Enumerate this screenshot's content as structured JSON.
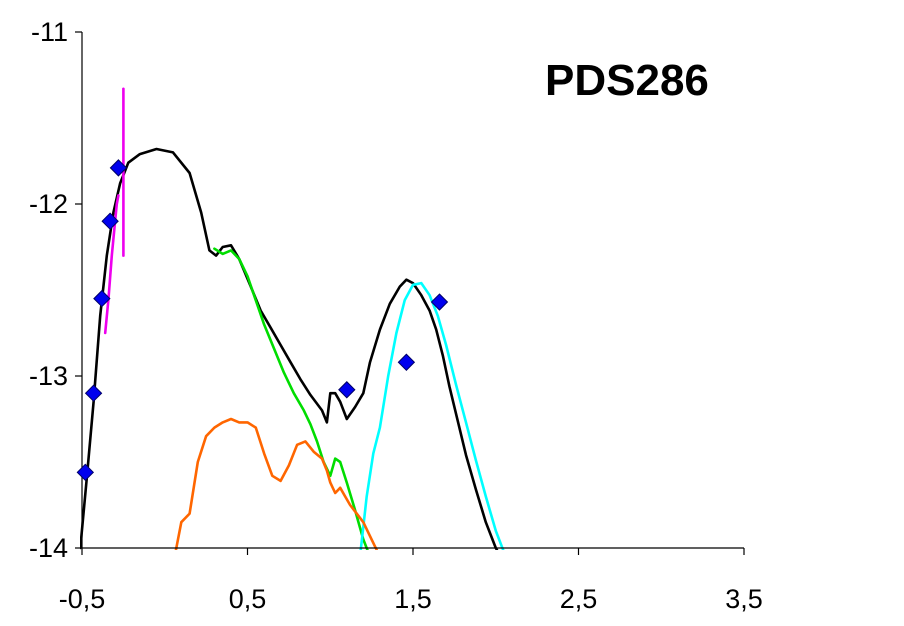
{
  "chart_data": {
    "type": "line",
    "title": "PDS286",
    "xlabel": "",
    "ylabel": "",
    "xlim": [
      -0.5,
      3.5
    ],
    "ylim": [
      -14,
      -11
    ],
    "x_ticks": [
      -0.5,
      0.5,
      1.5,
      2.5,
      3.5
    ],
    "x_tick_labels": [
      "-0,5",
      "0,5",
      "1,5",
      "2,5",
      "3,5"
    ],
    "y_ticks": [
      -11,
      -12,
      -13,
      -14
    ],
    "y_tick_labels": [
      "-11",
      "-12",
      "-13",
      "-14"
    ],
    "grid": false,
    "legend": "none",
    "series": [
      {
        "style": "points",
        "marker": "diamond",
        "color": "#0000ee",
        "x": [
          -0.48,
          -0.43,
          -0.38,
          -0.33,
          -0.28,
          1.1,
          1.46,
          1.66
        ],
        "y": [
          -13.56,
          -13.1,
          -12.55,
          -12.1,
          -11.79,
          -13.08,
          -12.92,
          -12.57
        ]
      },
      {
        "style": "line",
        "color": "#000000",
        "x": [
          -0.51,
          -0.47,
          -0.43,
          -0.39,
          -0.35,
          -0.31,
          -0.27,
          -0.22,
          -0.15,
          -0.05,
          0.05,
          0.15,
          0.22,
          0.27,
          0.31,
          0.35,
          0.4,
          0.45,
          0.52,
          0.58,
          0.64,
          0.7,
          0.76,
          0.82,
          0.88,
          0.95,
          0.98,
          1.0,
          1.03,
          1.06,
          1.1,
          1.15,
          1.2,
          1.24,
          1.3,
          1.36,
          1.42,
          1.46,
          1.5,
          1.55,
          1.6,
          1.64,
          1.68,
          1.72,
          1.77,
          1.82,
          1.88,
          1.94,
          2.0,
          2.06,
          2.13
        ],
        "y": [
          -14.0,
          -13.58,
          -13.15,
          -12.65,
          -12.3,
          -12.05,
          -11.88,
          -11.76,
          -11.71,
          -11.68,
          -11.7,
          -11.82,
          -12.05,
          -12.27,
          -12.3,
          -12.25,
          -12.24,
          -12.32,
          -12.48,
          -12.62,
          -12.72,
          -12.82,
          -12.92,
          -13.02,
          -13.11,
          -13.2,
          -13.27,
          -13.1,
          -13.1,
          -13.15,
          -13.25,
          -13.18,
          -13.1,
          -12.92,
          -12.73,
          -12.58,
          -12.48,
          -12.44,
          -12.46,
          -12.53,
          -12.62,
          -12.73,
          -12.88,
          -13.06,
          -13.26,
          -13.46,
          -13.66,
          -13.85,
          -14.0,
          -14.1,
          -14.2
        ]
      },
      {
        "style": "line",
        "color": "#00dd00",
        "x": [
          0.3,
          0.35,
          0.4,
          0.45,
          0.5,
          0.55,
          0.6,
          0.66,
          0.72,
          0.78,
          0.84,
          0.88,
          0.92,
          0.96,
          1.0,
          1.03,
          1.06,
          1.1,
          1.15,
          1.2,
          1.24,
          1.28,
          1.32
        ],
        "y": [
          -12.26,
          -12.29,
          -12.27,
          -12.32,
          -12.42,
          -12.56,
          -12.7,
          -12.84,
          -12.98,
          -13.1,
          -13.2,
          -13.28,
          -13.38,
          -13.5,
          -13.58,
          -13.48,
          -13.5,
          -13.62,
          -13.78,
          -13.95,
          -14.05,
          -14.15,
          -14.25
        ]
      },
      {
        "style": "line",
        "color": "#00ffff",
        "x": [
          1.18,
          1.22,
          1.26,
          1.3,
          1.35,
          1.4,
          1.45,
          1.5,
          1.55,
          1.6,
          1.65,
          1.7,
          1.76,
          1.82,
          1.88,
          1.94,
          2.0,
          2.06,
          2.13
        ],
        "y": [
          -14.05,
          -13.7,
          -13.45,
          -13.3,
          -13.0,
          -12.75,
          -12.56,
          -12.47,
          -12.46,
          -12.53,
          -12.65,
          -12.82,
          -13.05,
          -13.27,
          -13.49,
          -13.7,
          -13.9,
          -14.05,
          -14.2
        ]
      },
      {
        "style": "line",
        "color": "#ff6600",
        "x": [
          0.05,
          0.1,
          0.15,
          0.2,
          0.25,
          0.3,
          0.35,
          0.4,
          0.45,
          0.5,
          0.55,
          0.6,
          0.65,
          0.7,
          0.75,
          0.8,
          0.85,
          0.9,
          0.95,
          0.98,
          1.0,
          1.03,
          1.06,
          1.09,
          1.12,
          1.16,
          1.2,
          1.25,
          1.3,
          1.35,
          1.4,
          1.45,
          1.5
        ],
        "y": [
          -14.1,
          -13.85,
          -13.8,
          -13.5,
          -13.35,
          -13.3,
          -13.27,
          -13.25,
          -13.27,
          -13.27,
          -13.3,
          -13.45,
          -13.58,
          -13.61,
          -13.52,
          -13.4,
          -13.38,
          -13.44,
          -13.48,
          -13.55,
          -13.62,
          -13.68,
          -13.65,
          -13.7,
          -13.75,
          -13.8,
          -13.85,
          -13.95,
          -14.05,
          -14.12,
          -14.2,
          -14.3,
          -14.4
        ]
      },
      {
        "style": "line",
        "color": "#ee00ee",
        "x": [
          -0.36,
          -0.34,
          -0.32,
          -0.3,
          -0.29,
          -0.28
        ],
        "y": [
          -12.75,
          -12.55,
          -12.3,
          -12.1,
          -12.0,
          -11.95
        ]
      },
      {
        "style": "line",
        "color": "#ee00ee",
        "x": [
          -0.25,
          -0.25
        ],
        "y": [
          -11.33,
          -12.3
        ]
      }
    ]
  }
}
